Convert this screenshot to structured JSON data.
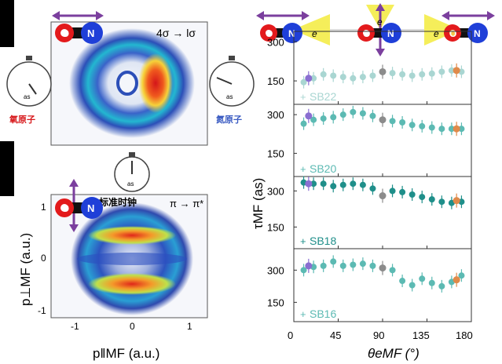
{
  "colors": {
    "oxygen": "#e31a1c",
    "nitrogen": "#1f3fd8",
    "arrow": "#7b3f9e",
    "electron_cone": "#f5ee5a",
    "sb22": "#a9d6d2",
    "sb20": "#5cbab3",
    "sb18": "#1f8f8a",
    "sb16": "#5cbab3",
    "marker_purple": "#8a6fd1",
    "marker_gray": "#8c8c8c",
    "marker_orange": "#e08a4a"
  },
  "molecule": {
    "o": "O",
    "n": "N",
    "e": "e"
  },
  "left": {
    "top_label": "4σ → lσ",
    "bottom_label": "π → π*",
    "clock_left_label": "氧原子",
    "clock_right_label": "氮原子",
    "clock_center_label": "标准时钟",
    "clock_face_label": "as",
    "x_axis_label": "p‖MF (a.u.)",
    "y_axis_label": "p⊥MF (a.u.)",
    "x_ticks": [
      "-1",
      "0",
      "1"
    ],
    "y_ticks": [
      "1",
      "0",
      "-1"
    ]
  },
  "right": {
    "y_axis_label": "τMF (as)",
    "x_axis_label": "θeMF (°)",
    "x_ticks": [
      "0",
      "45",
      "90",
      "135",
      "180"
    ],
    "y_ticks": [
      "150",
      "300"
    ]
  },
  "chart_data": [
    {
      "type": "scatter",
      "title": "SB22",
      "xlabel": "θeMF (°)",
      "ylabel": "τMF (as)",
      "xlim": [
        0,
        180
      ],
      "ylim": [
        60,
        340
      ],
      "series": [
        {
          "name": "SB22",
          "x": [
            10,
            20,
            30,
            40,
            50,
            60,
            70,
            80,
            100,
            110,
            120,
            130,
            140,
            150,
            160,
            170
          ],
          "y": [
            145,
            160,
            175,
            170,
            165,
            160,
            165,
            170,
            180,
            175,
            170,
            175,
            178,
            185,
            190,
            185
          ]
        }
      ],
      "highlights": [
        {
          "x": 15,
          "y": 160,
          "color": "marker_purple"
        },
        {
          "x": 90,
          "y": 185,
          "color": "marker_gray"
        },
        {
          "x": 165,
          "y": 190,
          "color": "marker_orange"
        }
      ]
    },
    {
      "type": "scatter",
      "title": "SB20",
      "xlabel": "θeMF (°)",
      "ylabel": "τMF (as)",
      "xlim": [
        0,
        180
      ],
      "ylim": [
        60,
        340
      ],
      "series": [
        {
          "name": "SB20",
          "x": [
            10,
            20,
            30,
            40,
            50,
            60,
            70,
            80,
            100,
            110,
            120,
            130,
            140,
            150,
            160,
            170
          ],
          "y": [
            265,
            280,
            285,
            290,
            300,
            310,
            305,
            295,
            275,
            270,
            260,
            255,
            250,
            245,
            245,
            245
          ]
        }
      ],
      "highlights": [
        {
          "x": 15,
          "y": 295,
          "color": "marker_purple"
        },
        {
          "x": 90,
          "y": 280,
          "color": "marker_gray"
        },
        {
          "x": 165,
          "y": 245,
          "color": "marker_orange"
        }
      ]
    },
    {
      "type": "scatter",
      "title": "SB18",
      "xlabel": "θeMF (°)",
      "ylabel": "τMF (as)",
      "xlim": [
        0,
        180
      ],
      "ylim": [
        60,
        360
      ],
      "series": [
        {
          "name": "SB18",
          "x": [
            10,
            20,
            30,
            40,
            50,
            60,
            70,
            80,
            100,
            110,
            120,
            130,
            140,
            150,
            160,
            170
          ],
          "y": [
            335,
            330,
            330,
            320,
            325,
            330,
            325,
            310,
            300,
            295,
            285,
            275,
            265,
            255,
            250,
            255
          ]
        }
      ],
      "highlights": [
        {
          "x": 15,
          "y": 330,
          "color": "marker_purple"
        },
        {
          "x": 90,
          "y": 280,
          "color": "marker_gray"
        },
        {
          "x": 165,
          "y": 260,
          "color": "marker_orange"
        }
      ]
    },
    {
      "type": "scatter",
      "title": "SB16",
      "xlabel": "θeMF (°)",
      "ylabel": "τMF (as)",
      "xlim": [
        0,
        180
      ],
      "ylim": [
        60,
        400
      ],
      "series": [
        {
          "name": "SB16",
          "x": [
            10,
            20,
            30,
            40,
            50,
            60,
            70,
            80,
            100,
            110,
            120,
            130,
            140,
            150,
            160,
            170
          ],
          "y": [
            300,
            315,
            320,
            340,
            320,
            325,
            330,
            320,
            300,
            250,
            230,
            260,
            240,
            225,
            245,
            275
          ]
        }
      ],
      "highlights": [
        {
          "x": 15,
          "y": 320,
          "color": "marker_purple"
        },
        {
          "x": 90,
          "y": 310,
          "color": "marker_gray"
        },
        {
          "x": 165,
          "y": 255,
          "color": "marker_orange"
        }
      ]
    }
  ]
}
